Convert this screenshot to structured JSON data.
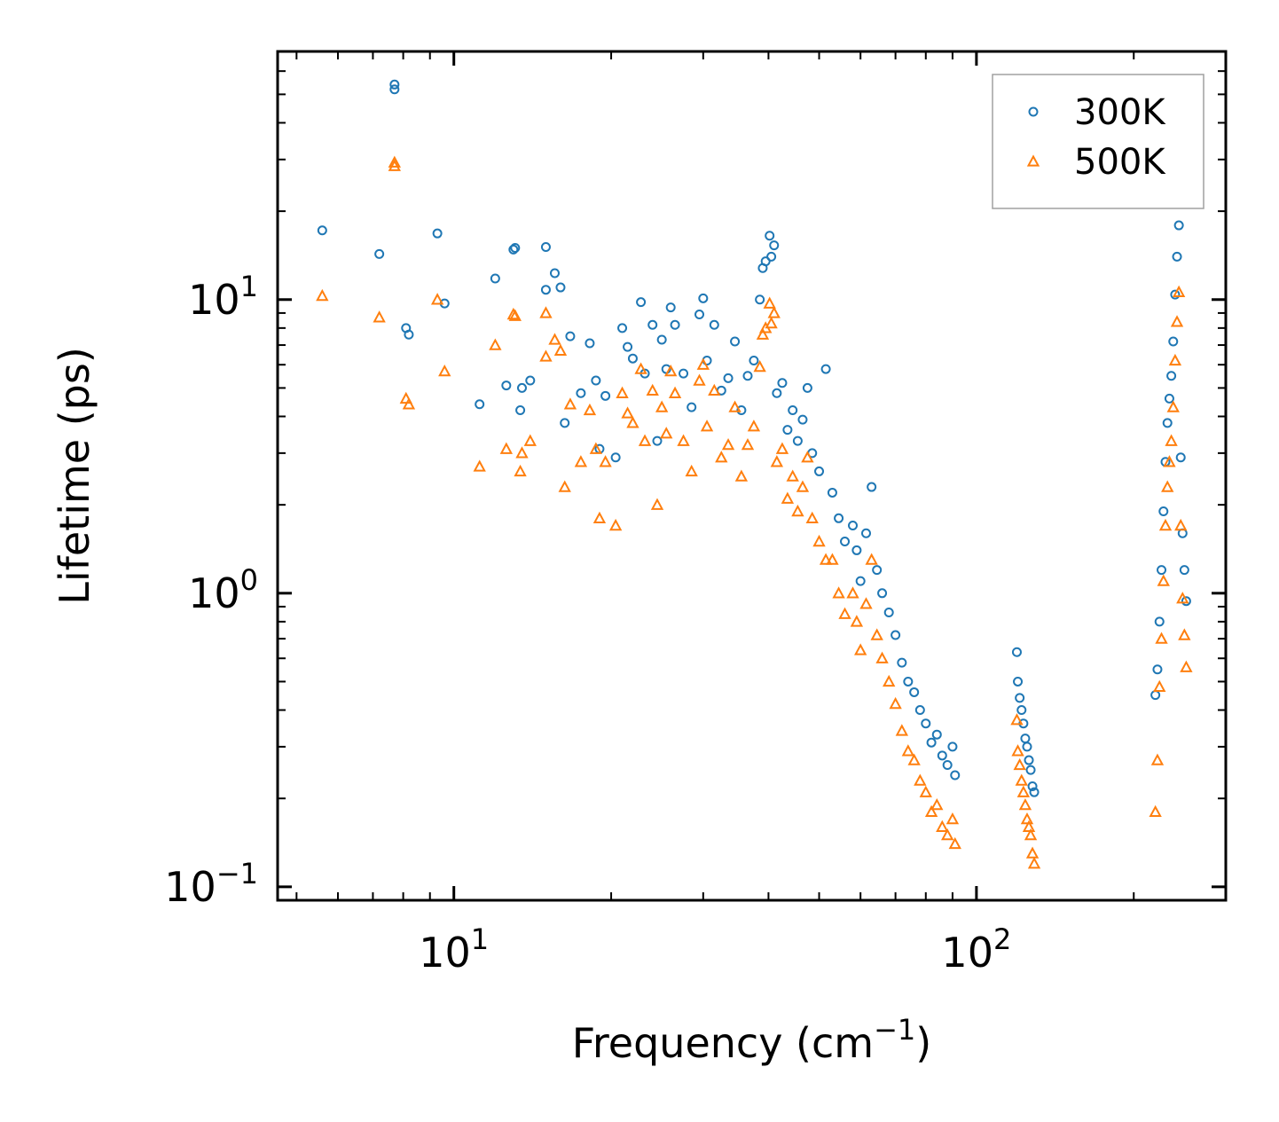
{
  "chart_data": {
    "type": "scatter",
    "title": "",
    "xlabel": "Frequency (cm",
    "xlabel_superscript": "−1",
    "xlabel_suffix": ")",
    "ylabel": "Lifetime (ps)",
    "xscale": "log",
    "yscale": "log",
    "xlim": [
      4.6,
      300
    ],
    "ylim": [
      0.09,
      70
    ],
    "grid": false,
    "legend_position": "top-right",
    "x_major_ticks": [
      {
        "value": 10,
        "base": "10",
        "exponent": "1"
      },
      {
        "value": 100,
        "base": "10",
        "exponent": "2"
      }
    ],
    "y_major_ticks": [
      {
        "value": 10,
        "base": "10",
        "exponent": "1"
      },
      {
        "value": 1,
        "base": "10",
        "exponent": "0"
      },
      {
        "value": 0.1,
        "base": "10",
        "exponent": "−1"
      }
    ],
    "series": [
      {
        "name": "300K",
        "marker": "circle",
        "color": "#1f77b4",
        "points": [
          [
            5.6,
            17.2
          ],
          [
            7.2,
            14.3
          ],
          [
            7.7,
            52
          ],
          [
            7.7,
            54
          ],
          [
            8.1,
            8.0
          ],
          [
            8.2,
            7.6
          ],
          [
            9.3,
            16.8
          ],
          [
            9.6,
            9.7
          ],
          [
            11.2,
            4.4
          ],
          [
            12.0,
            11.8
          ],
          [
            12.6,
            5.1
          ],
          [
            13.0,
            14.8
          ],
          [
            13.1,
            15.0
          ],
          [
            13.4,
            4.2
          ],
          [
            13.5,
            5.0
          ],
          [
            14.0,
            5.3
          ],
          [
            15.0,
            15.1
          ],
          [
            15.0,
            10.8
          ],
          [
            15.6,
            12.3
          ],
          [
            16.0,
            11.0
          ],
          [
            16.3,
            3.8
          ],
          [
            16.7,
            7.5
          ],
          [
            17.5,
            4.8
          ],
          [
            18.2,
            7.1
          ],
          [
            18.7,
            5.3
          ],
          [
            19.0,
            3.1
          ],
          [
            19.5,
            4.7
          ],
          [
            20.4,
            2.9
          ],
          [
            21.0,
            8.0
          ],
          [
            21.5,
            6.9
          ],
          [
            22.0,
            6.3
          ],
          [
            22.8,
            9.8
          ],
          [
            23.2,
            5.6
          ],
          [
            24.0,
            8.2
          ],
          [
            24.5,
            3.3
          ],
          [
            25.0,
            7.3
          ],
          [
            25.5,
            5.8
          ],
          [
            26.0,
            9.4
          ],
          [
            26.5,
            8.2
          ],
          [
            27.5,
            5.6
          ],
          [
            28.5,
            4.3
          ],
          [
            29.5,
            8.9
          ],
          [
            30.0,
            10.1
          ],
          [
            30.5,
            6.2
          ],
          [
            31.5,
            8.2
          ],
          [
            32.5,
            4.9
          ],
          [
            33.5,
            5.4
          ],
          [
            34.5,
            7.2
          ],
          [
            35.5,
            4.2
          ],
          [
            36.5,
            5.5
          ],
          [
            37.5,
            6.2
          ],
          [
            38.5,
            10.0
          ],
          [
            39.0,
            12.8
          ],
          [
            39.5,
            13.5
          ],
          [
            40.2,
            16.5
          ],
          [
            40.5,
            14.0
          ],
          [
            41.0,
            15.3
          ],
          [
            41.5,
            4.8
          ],
          [
            42.5,
            5.2
          ],
          [
            43.5,
            3.6
          ],
          [
            44.5,
            4.2
          ],
          [
            45.5,
            3.3
          ],
          [
            46.5,
            3.9
          ],
          [
            47.5,
            5.0
          ],
          [
            48.5,
            3.0
          ],
          [
            50.0,
            2.6
          ],
          [
            51.5,
            5.8
          ],
          [
            53.0,
            2.2
          ],
          [
            54.5,
            1.8
          ],
          [
            56.0,
            1.5
          ],
          [
            58.0,
            1.7
          ],
          [
            59.0,
            1.4
          ],
          [
            60.0,
            1.1
          ],
          [
            61.5,
            1.6
          ],
          [
            63.0,
            2.3
          ],
          [
            64.5,
            1.2
          ],
          [
            66.0,
            1.0
          ],
          [
            68.0,
            0.86
          ],
          [
            70.0,
            0.72
          ],
          [
            72.0,
            0.58
          ],
          [
            74.0,
            0.5
          ],
          [
            76.0,
            0.46
          ],
          [
            78.0,
            0.4
          ],
          [
            80.0,
            0.36
          ],
          [
            82.0,
            0.31
          ],
          [
            84.0,
            0.33
          ],
          [
            86.0,
            0.28
          ],
          [
            88.0,
            0.26
          ],
          [
            90.0,
            0.3
          ],
          [
            91.0,
            0.24
          ],
          [
            119.5,
            0.63
          ],
          [
            120.0,
            0.5
          ],
          [
            121.0,
            0.44
          ],
          [
            122.0,
            0.4
          ],
          [
            123.0,
            0.36
          ],
          [
            124.0,
            0.32
          ],
          [
            125.0,
            0.3
          ],
          [
            126.0,
            0.27
          ],
          [
            127.0,
            0.25
          ],
          [
            128.0,
            0.22
          ],
          [
            129.0,
            0.21
          ],
          [
            220.0,
            0.45
          ],
          [
            222.0,
            0.55
          ],
          [
            224.0,
            0.8
          ],
          [
            226.0,
            1.2
          ],
          [
            228.0,
            1.9
          ],
          [
            230.0,
            2.8
          ],
          [
            232.0,
            3.8
          ],
          [
            234.0,
            4.6
          ],
          [
            236.0,
            5.5
          ],
          [
            238.0,
            7.2
          ],
          [
            240.0,
            10.4
          ],
          [
            242.0,
            14.0
          ],
          [
            244.0,
            17.9
          ],
          [
            246.0,
            2.9
          ],
          [
            248.0,
            1.6
          ],
          [
            250.0,
            1.2
          ],
          [
            252.0,
            0.94
          ]
        ]
      },
      {
        "name": "500K",
        "marker": "triangle",
        "color": "#ff7f0e",
        "points": [
          [
            5.6,
            10.3
          ],
          [
            7.2,
            8.7
          ],
          [
            7.7,
            28.5
          ],
          [
            7.7,
            29.3
          ],
          [
            8.1,
            4.6
          ],
          [
            8.2,
            4.4
          ],
          [
            9.3,
            10.0
          ],
          [
            9.6,
            5.7
          ],
          [
            11.2,
            2.7
          ],
          [
            12.0,
            7.0
          ],
          [
            12.6,
            3.1
          ],
          [
            13.0,
            8.9
          ],
          [
            13.1,
            8.8
          ],
          [
            13.4,
            2.6
          ],
          [
            13.5,
            3.0
          ],
          [
            14.0,
            3.3
          ],
          [
            15.0,
            9.0
          ],
          [
            15.0,
            6.4
          ],
          [
            15.6,
            7.3
          ],
          [
            16.0,
            6.7
          ],
          [
            16.3,
            2.3
          ],
          [
            16.7,
            4.4
          ],
          [
            17.5,
            2.8
          ],
          [
            18.2,
            4.2
          ],
          [
            18.7,
            3.1
          ],
          [
            19.0,
            1.8
          ],
          [
            19.5,
            2.8
          ],
          [
            20.4,
            1.7
          ],
          [
            21.0,
            4.8
          ],
          [
            21.5,
            4.1
          ],
          [
            22.0,
            3.8
          ],
          [
            22.8,
            5.8
          ],
          [
            23.2,
            3.3
          ],
          [
            24.0,
            4.9
          ],
          [
            24.5,
            2.0
          ],
          [
            25.0,
            4.3
          ],
          [
            25.5,
            3.5
          ],
          [
            26.0,
            5.7
          ],
          [
            26.5,
            4.8
          ],
          [
            27.5,
            3.3
          ],
          [
            28.5,
            2.6
          ],
          [
            29.5,
            5.3
          ],
          [
            30.0,
            6.0
          ],
          [
            30.5,
            3.7
          ],
          [
            31.5,
            4.9
          ],
          [
            32.5,
            2.9
          ],
          [
            33.5,
            3.2
          ],
          [
            34.5,
            4.3
          ],
          [
            35.5,
            2.5
          ],
          [
            36.5,
            3.2
          ],
          [
            37.5,
            3.7
          ],
          [
            38.5,
            5.9
          ],
          [
            39.0,
            7.6
          ],
          [
            39.5,
            8.0
          ],
          [
            40.2,
            9.7
          ],
          [
            40.5,
            8.3
          ],
          [
            41.0,
            9.0
          ],
          [
            41.5,
            2.8
          ],
          [
            42.5,
            3.1
          ],
          [
            43.5,
            2.1
          ],
          [
            44.5,
            2.5
          ],
          [
            45.5,
            1.9
          ],
          [
            46.5,
            2.3
          ],
          [
            47.5,
            2.9
          ],
          [
            48.5,
            1.8
          ],
          [
            50.0,
            1.5
          ],
          [
            51.5,
            1.3
          ],
          [
            53.0,
            1.3
          ],
          [
            54.5,
            1.0
          ],
          [
            56.0,
            0.85
          ],
          [
            58.0,
            1.0
          ],
          [
            59.0,
            0.8
          ],
          [
            60.0,
            0.64
          ],
          [
            61.5,
            0.92
          ],
          [
            63.0,
            1.3
          ],
          [
            64.5,
            0.72
          ],
          [
            66.0,
            0.6
          ],
          [
            68.0,
            0.5
          ],
          [
            70.0,
            0.42
          ],
          [
            72.0,
            0.34
          ],
          [
            74.0,
            0.29
          ],
          [
            76.0,
            0.27
          ],
          [
            78.0,
            0.23
          ],
          [
            80.0,
            0.21
          ],
          [
            82.0,
            0.18
          ],
          [
            84.0,
            0.19
          ],
          [
            86.0,
            0.16
          ],
          [
            88.0,
            0.15
          ],
          [
            90.0,
            0.17
          ],
          [
            91.0,
            0.14
          ],
          [
            119.5,
            0.37
          ],
          [
            120.0,
            0.29
          ],
          [
            121.0,
            0.26
          ],
          [
            122.0,
            0.23
          ],
          [
            123.0,
            0.21
          ],
          [
            124.0,
            0.19
          ],
          [
            125.0,
            0.17
          ],
          [
            126.0,
            0.16
          ],
          [
            127.0,
            0.15
          ],
          [
            128.0,
            0.13
          ],
          [
            129.0,
            0.12
          ],
          [
            220.0,
            0.18
          ],
          [
            222.0,
            0.27
          ],
          [
            224.0,
            0.48
          ],
          [
            226.0,
            0.7
          ],
          [
            228.0,
            1.1
          ],
          [
            230.0,
            1.7
          ],
          [
            232.0,
            2.3
          ],
          [
            234.0,
            2.8
          ],
          [
            236.0,
            3.3
          ],
          [
            238.0,
            4.3
          ],
          [
            240.0,
            6.2
          ],
          [
            242.0,
            8.4
          ],
          [
            244.0,
            10.6
          ],
          [
            246.0,
            1.7
          ],
          [
            248.0,
            0.96
          ],
          [
            250.0,
            0.72
          ],
          [
            252.0,
            0.56
          ]
        ]
      }
    ]
  }
}
